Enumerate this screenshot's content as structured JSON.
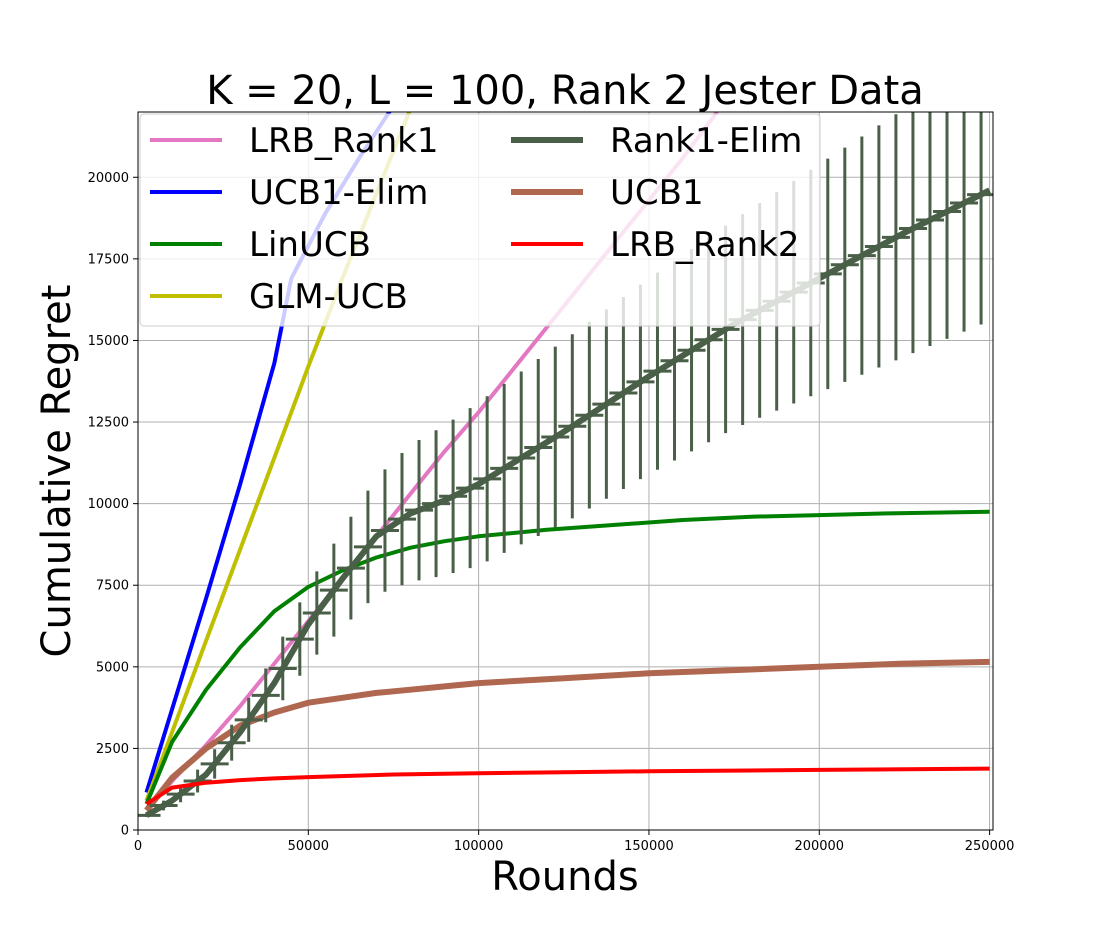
{
  "chart_data": {
    "type": "line",
    "title": "K = 20, L = 100, Rank 2 Jester Data",
    "xlabel": "Rounds",
    "ylabel": "Cumulative Regret",
    "xlim": [
      0,
      251000
    ],
    "ylim": [
      0,
      22000
    ],
    "xticks": [
      0,
      50000,
      100000,
      150000,
      200000,
      250000
    ],
    "yticks": [
      0,
      2500,
      5000,
      7500,
      10000,
      12500,
      15000,
      17500,
      20000
    ],
    "grid": true,
    "legend_placement": "upper-left",
    "series": [
      {
        "name": "LRB_Rank1",
        "color": "#e377c2",
        "width": 4,
        "x": [
          2500,
          10000,
          20000,
          30000,
          40000,
          50000,
          60000,
          70000,
          80000,
          90000,
          100000,
          110000,
          120000,
          130000,
          140000,
          150000,
          160000,
          170000
        ],
        "y": [
          600,
          1500,
          2600,
          3800,
          5100,
          6400,
          7700,
          9000,
          10300,
          11600,
          12800,
          14100,
          15400,
          16700,
          18000,
          19300,
          20600,
          22000
        ]
      },
      {
        "name": "UCB1-Elim",
        "color": "#0000ff",
        "width": 4,
        "x": [
          2500,
          10000,
          20000,
          30000,
          40000,
          45000,
          55000,
          65000,
          75000
        ],
        "y": [
          1150,
          3700,
          7100,
          10600,
          14300,
          16900,
          18900,
          20600,
          22200
        ]
      },
      {
        "name": "LinUCB",
        "color": "#008000",
        "width": 4,
        "x": [
          2500,
          10000,
          20000,
          30000,
          40000,
          50000,
          60000,
          70000,
          80000,
          90000,
          100000,
          120000,
          140000,
          160000,
          180000,
          200000,
          220000,
          250000
        ],
        "y": [
          800,
          2700,
          4300,
          5600,
          6700,
          7450,
          7950,
          8350,
          8650,
          8850,
          9000,
          9200,
          9350,
          9500,
          9600,
          9650,
          9700,
          9750
        ]
      },
      {
        "name": "GLM-UCB",
        "color": "#bfbf00",
        "width": 4,
        "x": [
          2500,
          10000,
          20000,
          30000,
          40000,
          50000,
          60000,
          70000,
          80000
        ],
        "y": [
          900,
          3000,
          5800,
          8600,
          11400,
          14200,
          16900,
          19500,
          22100
        ]
      },
      {
        "name": "Rank1-Elim",
        "color": "#4a5f47",
        "width": 6,
        "x": [
          2500,
          10000,
          20000,
          30000,
          40000,
          50000,
          60000,
          70000,
          80000,
          90000,
          100000,
          125000,
          150000,
          175000,
          200000,
          225000,
          250000
        ],
        "y": [
          450,
          900,
          1700,
          3000,
          4500,
          6300,
          7700,
          9000,
          9700,
          10100,
          10600,
          12200,
          13900,
          15500,
          16900,
          18300,
          19600
        ],
        "error": [
          50,
          200,
          400,
          600,
          900,
          1200,
          1500,
          1800,
          2100,
          2300,
          2500,
          2800,
          3000,
          3200,
          3500,
          3800,
          4000
        ]
      },
      {
        "name": "UCB1",
        "color": "#b0674f",
        "width": 6,
        "x": [
          2500,
          10000,
          20000,
          30000,
          40000,
          50000,
          60000,
          70000,
          80000,
          90000,
          100000,
          125000,
          150000,
          175000,
          200000,
          225000,
          250000
        ],
        "y": [
          600,
          1600,
          2500,
          3200,
          3600,
          3900,
          4050,
          4200,
          4300,
          4400,
          4500,
          4650,
          4800,
          4900,
          5000,
          5100,
          5150
        ]
      },
      {
        "name": "LRB_Rank2",
        "color": "#ff0000",
        "width": 4,
        "x": [
          2500,
          10000,
          20000,
          30000,
          40000,
          50000,
          75000,
          100000,
          125000,
          150000,
          175000,
          200000,
          250000
        ],
        "y": [
          800,
          1300,
          1450,
          1530,
          1580,
          1620,
          1700,
          1740,
          1770,
          1800,
          1820,
          1840,
          1880
        ]
      }
    ]
  }
}
